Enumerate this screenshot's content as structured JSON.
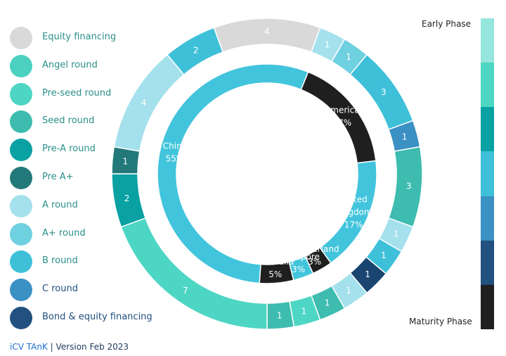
{
  "chart_data": {
    "type": "pie",
    "subtype": "nested-donut",
    "legend_placement": "left",
    "legend": [
      {
        "label": "Equity financing",
        "color": "#d9d9d9"
      },
      {
        "label": "Angel round",
        "color": "#4cd1c1"
      },
      {
        "label": "Pre-seed round",
        "color": "#4dd6c3"
      },
      {
        "label": "Seed round",
        "color": "#3dbcaf"
      },
      {
        "label": "Pre-A round",
        "color": "#0aa1a3"
      },
      {
        "label": "Pre A+",
        "color": "#23797a"
      },
      {
        "label": "A round",
        "color": "#a4e1ec"
      },
      {
        "label": "A+ round",
        "color": "#6fd0e0"
      },
      {
        "label": "B round",
        "color": "#3fc0d9"
      },
      {
        "label": "C round",
        "color": "#3b90c4"
      },
      {
        "label": "Bond & equity financing",
        "color": "#22507f"
      }
    ],
    "outer_ring": [
      {
        "value": 4,
        "color": "#d9d9d9"
      },
      {
        "value": 1,
        "color": "#a4e1ec"
      },
      {
        "value": 1,
        "color": "#6fd0e0"
      },
      {
        "value": 3,
        "color": "#3fc0d9"
      },
      {
        "value": 1,
        "color": "#3b90c4"
      },
      {
        "value": 3,
        "color": "#3dbcaf"
      },
      {
        "value": 1,
        "color": "#a4e1ec"
      },
      {
        "value": 1,
        "color": "#3fc0d9"
      },
      {
        "value": 1,
        "color": "#1a4570"
      },
      {
        "value": 1,
        "color": "#a4e1ec"
      },
      {
        "value": 1,
        "color": "#3dbcaf"
      },
      {
        "value": 1,
        "color": "#4dd6c3"
      },
      {
        "value": 1,
        "color": "#3dbcaf"
      },
      {
        "value": 7,
        "color": "#4dd6c3"
      },
      {
        "value": 2,
        "color": "#0aa1a3"
      },
      {
        "value": 1,
        "color": "#23797a"
      },
      {
        "value": 4,
        "color": "#a4e1ec"
      },
      {
        "value": 2,
        "color": "#3fc0d9"
      }
    ],
    "inner_ring": [
      {
        "name": "America",
        "value": 17,
        "pct_label": "17%",
        "color": "#1f1f1f"
      },
      {
        "name": "United Kingdom",
        "value": 17,
        "pct_label": "17%",
        "color": "#42c4dc"
      },
      {
        "name": "Switzerland",
        "value": 3,
        "pct_label": "3%",
        "color": "#1f1f1f"
      },
      {
        "name": "Singapore",
        "value": 3,
        "pct_label": "3%",
        "color": "#42c4dc"
      },
      {
        "name": "Australia",
        "value": 5,
        "pct_label": "5%",
        "color": "#1f1f1f"
      },
      {
        "name": "China",
        "value": 55,
        "pct_label": "55%",
        "color": "#42c4dc"
      }
    ]
  },
  "phase_scale": {
    "top_label": "Early Phase",
    "bottom_label": "Maturity Phase",
    "colors": [
      "#95e6dc",
      "#4dd6c3",
      "#0aa1a3",
      "#3fc0d9",
      "#3b90c4",
      "#22507f",
      "#1f1f1f"
    ]
  },
  "footer": {
    "brand": "iCV TAnK",
    "text": "| Version Feb 2023"
  }
}
